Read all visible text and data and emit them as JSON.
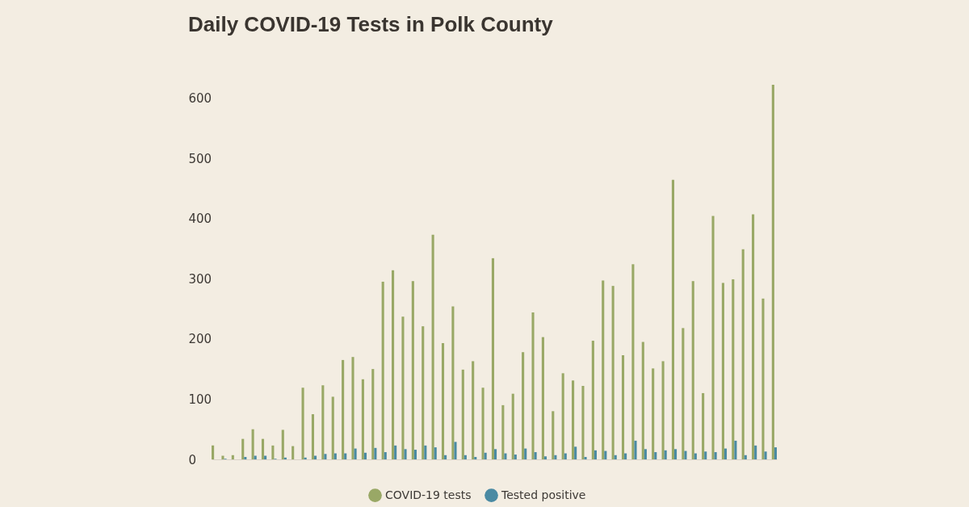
{
  "chart_data": {
    "type": "bar",
    "title": "Daily COVID-19 Tests in Polk County",
    "categories": [
      null,
      null,
      null,
      null,
      null,
      null,
      null,
      null,
      null,
      null,
      null,
      null,
      null,
      null,
      null,
      null,
      null,
      null,
      null,
      null,
      null,
      null,
      null,
      null,
      null,
      null,
      null,
      null,
      null,
      null,
      null,
      null,
      null,
      null,
      null,
      null,
      null,
      null,
      null,
      null,
      null,
      null,
      null,
      null,
      null,
      null,
      null,
      null,
      null,
      null,
      null,
      null,
      null,
      null,
      null,
      null,
      null
    ],
    "series": [
      {
        "name": "COVID-19 tests",
        "color": "#99a866",
        "values": [
          23,
          6,
          7,
          34,
          50,
          34,
          23,
          49,
          22,
          119,
          75,
          123,
          104,
          165,
          170,
          133,
          150,
          295,
          314,
          237,
          296,
          221,
          373,
          193,
          254,
          149,
          163,
          119,
          334,
          90,
          109,
          178,
          244,
          203,
          80,
          143,
          131,
          122,
          197,
          297,
          288,
          173,
          324,
          195,
          151,
          163,
          464,
          218,
          296,
          110,
          404,
          293,
          299,
          349,
          407,
          267,
          622
        ]
      },
      {
        "name": "Tested positive",
        "color": "#4a8aa3",
        "values": [
          0,
          1,
          0,
          4,
          6,
          6,
          1,
          3,
          0,
          3,
          6,
          9,
          10,
          10,
          18,
          11,
          19,
          12,
          23,
          17,
          16,
          23,
          20,
          7,
          29,
          7,
          4,
          11,
          17,
          10,
          8,
          18,
          12,
          5,
          7,
          10,
          21,
          4,
          15,
          14,
          7,
          10,
          31,
          17,
          12,
          15,
          17,
          14,
          10,
          13,
          12,
          18,
          31,
          7,
          23,
          13,
          20
        ]
      }
    ],
    "ylim": [
      0,
      622
    ],
    "yticks": [
      0,
      100,
      200,
      300,
      400,
      500,
      600
    ],
    "legend": "bottom",
    "tick_labels": "y"
  }
}
